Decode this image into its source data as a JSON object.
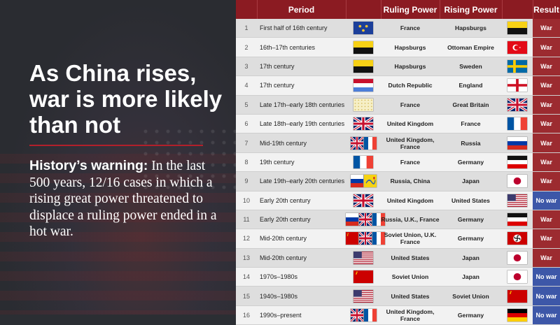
{
  "headline": "As China rises, war is more likely than not",
  "warning": {
    "bold": "History’s warning:",
    "text": " In the last 500 years, 12/16 cases in which a rising great power threatened to displace a ruling power ended in a hot war."
  },
  "table": {
    "headers": [
      "",
      "Period",
      "",
      "Ruling Power",
      "Rising Power",
      "",
      "Result"
    ],
    "rows": [
      {
        "num": "1",
        "period": "First half of 16th century",
        "ruling": "France",
        "rising": "Hapsburgs",
        "result": "War",
        "ruling_flags": [
          "france-royal-flag-icon"
        ],
        "rising_flags": [
          "hapsburg-flag-icon"
        ]
      },
      {
        "num": "2",
        "period": "16th–17th centuries",
        "ruling": "Hapsburgs",
        "rising": "Ottoman Empire",
        "result": "War",
        "ruling_flags": [
          "hapsburg-flag-icon"
        ],
        "rising_flags": [
          "turkey-flag-icon"
        ]
      },
      {
        "num": "3",
        "period": "17th century",
        "ruling": "Hapsburgs",
        "rising": "Sweden",
        "result": "War",
        "ruling_flags": [
          "hapsburg-flag-icon"
        ],
        "rising_flags": [
          "sweden-flag-icon"
        ]
      },
      {
        "num": "4",
        "period": "17th century",
        "ruling": "Dutch Republic",
        "rising": "England",
        "result": "War",
        "ruling_flags": [
          "dutch-flag-icon"
        ],
        "rising_flags": [
          "england-flag-icon"
        ]
      },
      {
        "num": "5",
        "period": "Late 17th–early 18th centuries",
        "ruling": "France",
        "rising": "Great Britain",
        "result": "War",
        "ruling_flags": [
          "france-bourbon-flag-icon"
        ],
        "rising_flags": [
          "uk-flag-icon"
        ]
      },
      {
        "num": "6",
        "period": "Late 18th–early 19th centuries",
        "ruling": "United Kingdom",
        "rising": "France",
        "result": "War",
        "ruling_flags": [
          "uk-flag-icon"
        ],
        "rising_flags": [
          "france-flag-icon"
        ]
      },
      {
        "num": "7",
        "period": "Mid-19th century",
        "ruling": "United Kingdom, France",
        "rising": "Russia",
        "result": "War",
        "ruling_flags": [
          "uk-flag-icon",
          "france-flag-icon"
        ],
        "rising_flags": [
          "russia-flag-icon"
        ]
      },
      {
        "num": "8",
        "period": "19th century",
        "ruling": "France",
        "rising": "Germany",
        "result": "War",
        "ruling_flags": [
          "france-flag-icon"
        ],
        "rising_flags": [
          "german-empire-flag-icon"
        ]
      },
      {
        "num": "9",
        "period": "Late 19th–early 20th centuries",
        "ruling": "Russia, China",
        "rising": "Japan",
        "result": "War",
        "ruling_flags": [
          "russia-flag-icon",
          "qing-flag-icon"
        ],
        "rising_flags": [
          "japan-flag-icon"
        ]
      },
      {
        "num": "10",
        "period": "Early 20th century",
        "ruling": "United Kingdom",
        "rising": "United States",
        "result": "No war",
        "ruling_flags": [
          "uk-flag-icon"
        ],
        "rising_flags": [
          "usa-flag-icon"
        ]
      },
      {
        "num": "11",
        "period": "Early 20th century",
        "ruling": "Russia, U.K., France",
        "rising": "Germany",
        "result": "War",
        "ruling_flags": [
          "russia-flag-icon",
          "uk-flag-icon",
          "france-flag-icon"
        ],
        "rising_flags": [
          "german-empire-flag-icon"
        ]
      },
      {
        "num": "12",
        "period": "Mid-20th century",
        "ruling": "Soviet Union, U.K. France",
        "rising": "Germany",
        "result": "War",
        "ruling_flags": [
          "ussr-flag-icon",
          "uk-flag-icon",
          "france-flag-icon"
        ],
        "rising_flags": [
          "nazi-germany-flag-icon"
        ]
      },
      {
        "num": "13",
        "period": "Mid-20th century",
        "ruling": "United States",
        "rising": "Japan",
        "result": "War",
        "ruling_flags": [
          "usa-flag-icon"
        ],
        "rising_flags": [
          "japan-flag-icon"
        ]
      },
      {
        "num": "14",
        "period": "1970s–1980s",
        "ruling": "Soviet Union",
        "rising": "Japan",
        "result": "No war",
        "ruling_flags": [
          "ussr-flag-icon"
        ],
        "rising_flags": [
          "japan-flag-icon"
        ]
      },
      {
        "num": "15",
        "period": "1940s–1980s",
        "ruling": "United States",
        "rising": "Soviet Union",
        "result": "No war",
        "ruling_flags": [
          "usa-flag-icon"
        ],
        "rising_flags": [
          "ussr-flag-icon"
        ]
      },
      {
        "num": "16",
        "period": "1990s–present",
        "ruling": "United Kingdom, France",
        "rising": "Germany",
        "result": "No war",
        "ruling_flags": [
          "uk-flag-icon",
          "france-flag-icon"
        ],
        "rising_flags": [
          "germany-flag-icon"
        ]
      }
    ]
  },
  "colors": {
    "header_bg": "#8b1b22",
    "war": "#9c2b30",
    "no_war": "#3d57a8",
    "rule": "#b2202b"
  }
}
